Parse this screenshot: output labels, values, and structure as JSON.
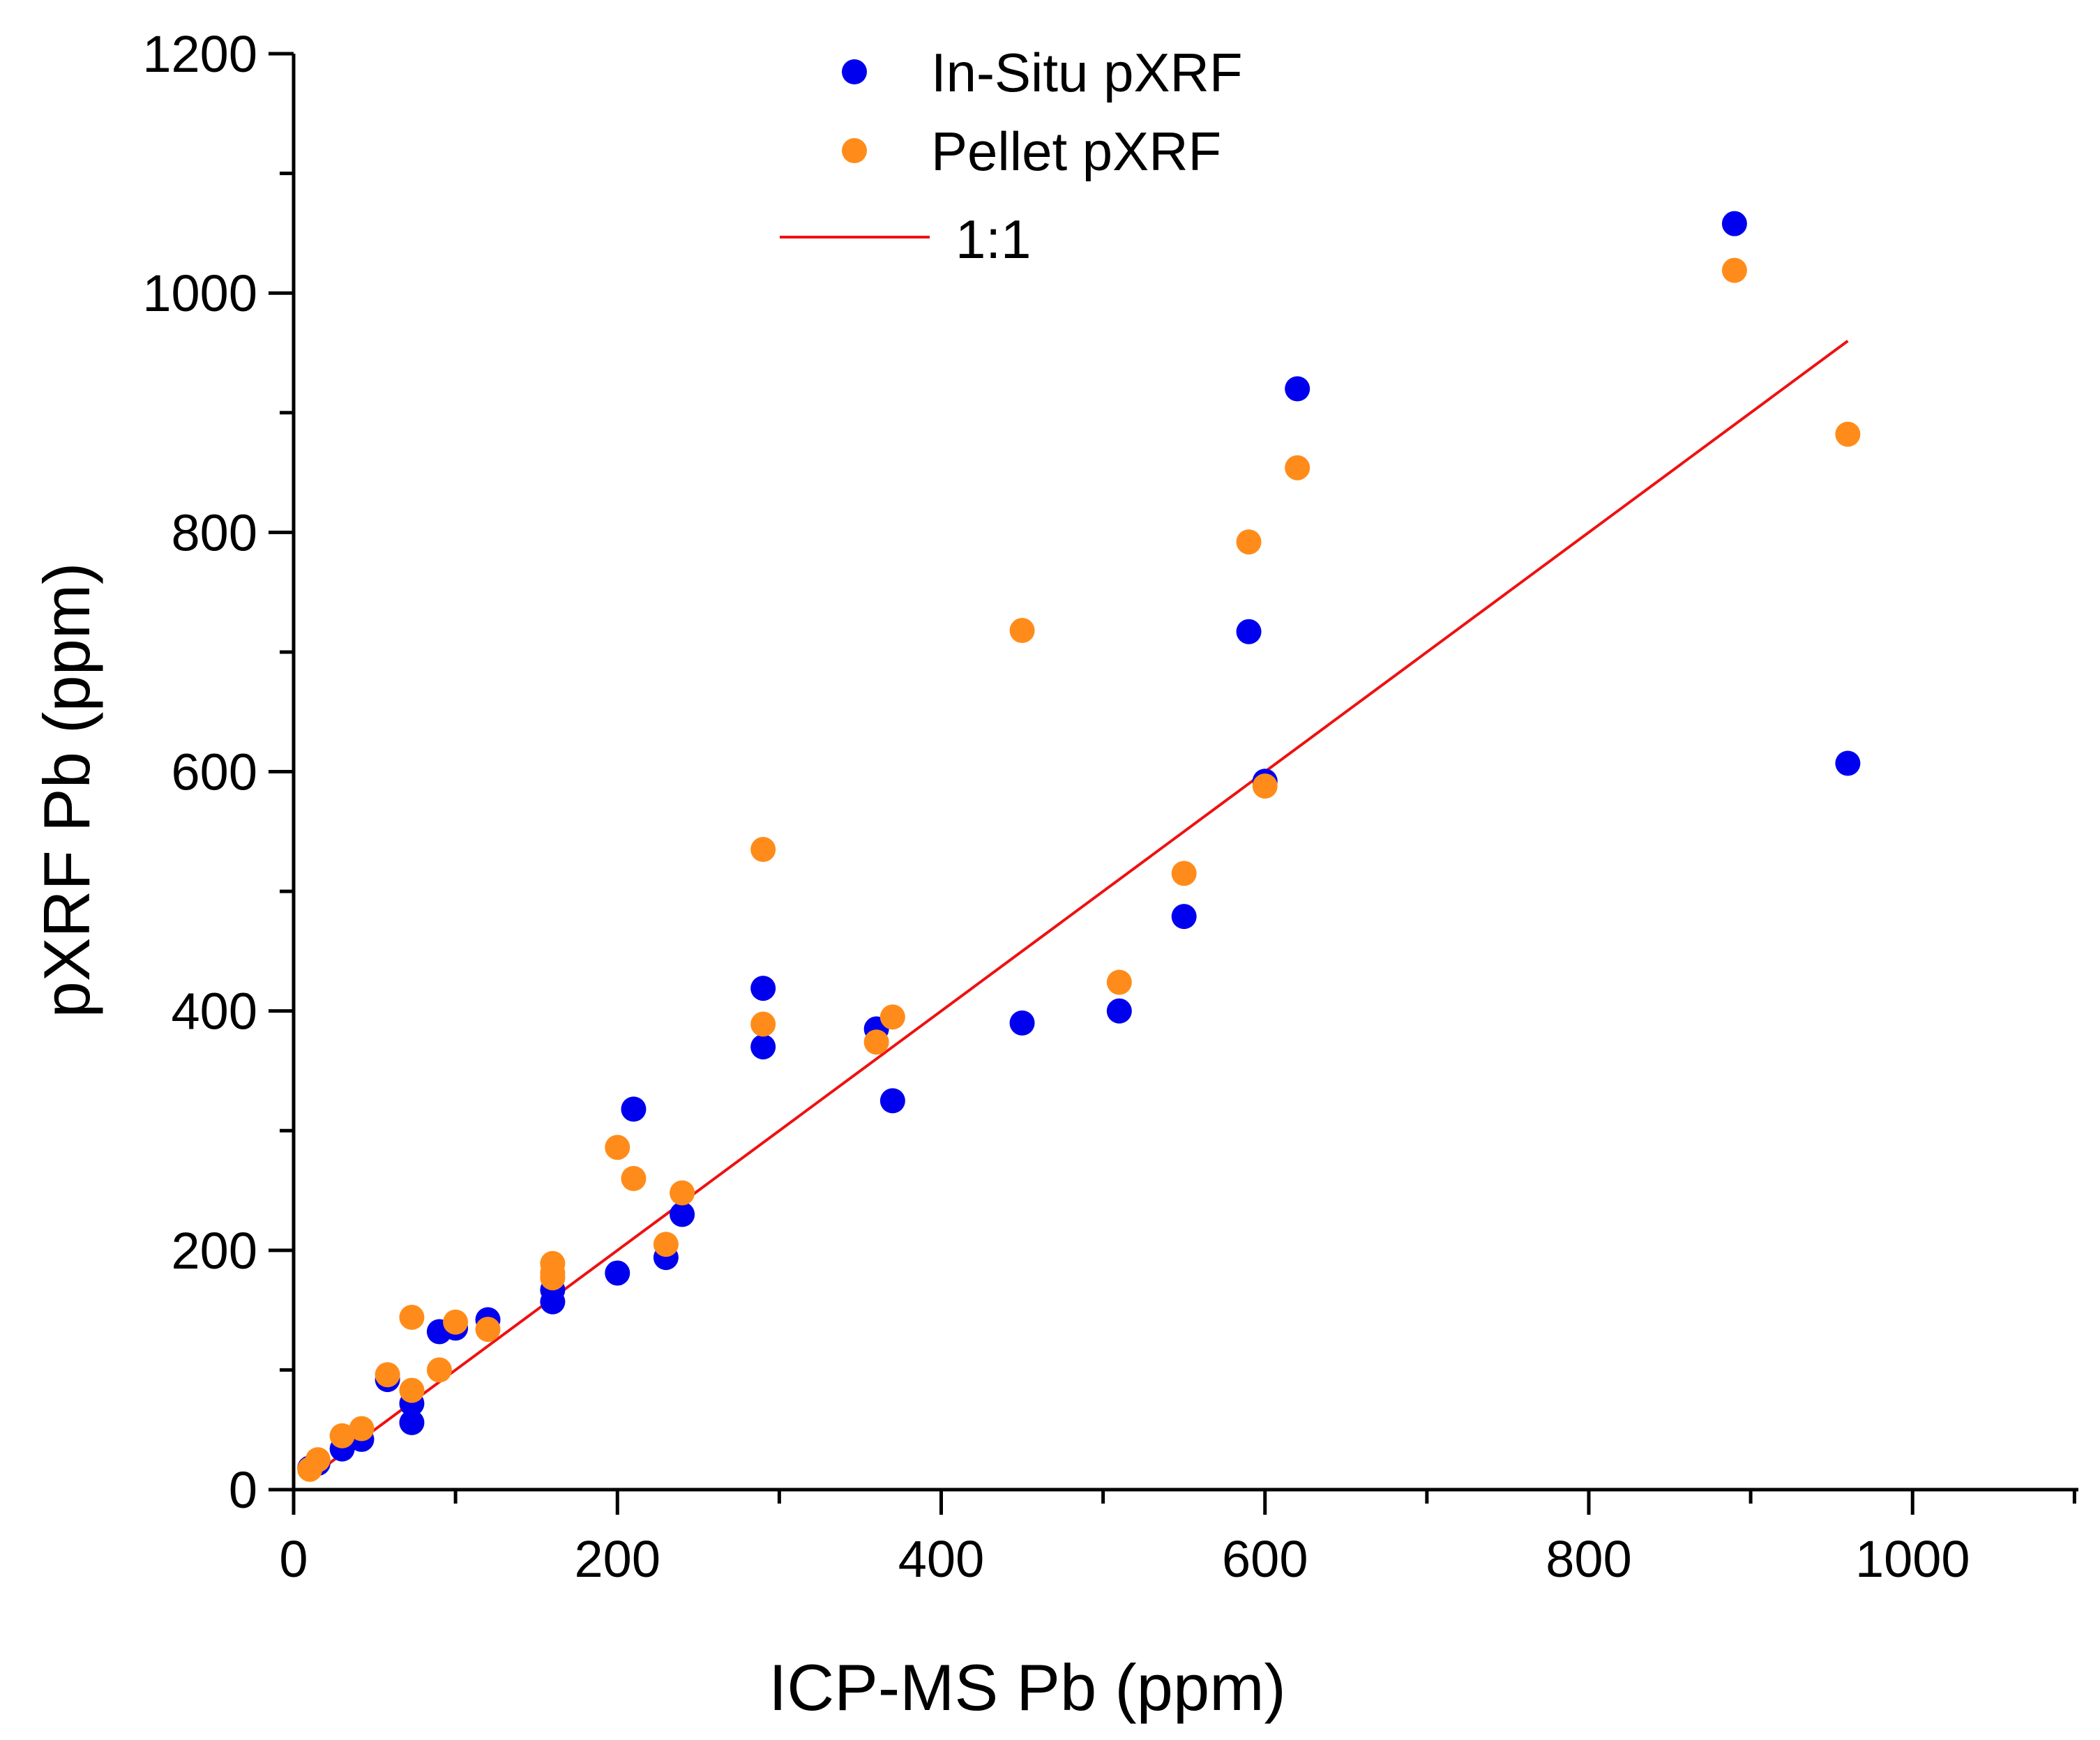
{
  "chart_data": {
    "type": "scatter",
    "title": "",
    "xlabel": "ICP-MS Pb (ppm)",
    "ylabel": "pXRF Pb (ppm)",
    "xlim": [
      0,
      1100
    ],
    "ylim": [
      0,
      1200
    ],
    "x_ticks": [
      0,
      200,
      400,
      600,
      800,
      1000
    ],
    "y_ticks": [
      0,
      200,
      400,
      600,
      800,
      1000,
      1200
    ],
    "grid": false,
    "legend_position": "top-center",
    "colors": {
      "in_situ": "#0000ee",
      "pellet": "#ff8c1a",
      "line": "#ee1111"
    },
    "series": [
      {
        "name": "In-Situ pXRF",
        "color": "#0000ee",
        "points": [
          [
            10,
            18
          ],
          [
            15,
            22
          ],
          [
            30,
            34
          ],
          [
            42,
            42
          ],
          [
            58,
            92
          ],
          [
            73,
            56
          ],
          [
            73,
            72
          ],
          [
            90,
            132
          ],
          [
            100,
            135
          ],
          [
            120,
            142
          ],
          [
            160,
            157
          ],
          [
            160,
            167
          ],
          [
            200,
            181
          ],
          [
            210,
            318
          ],
          [
            230,
            194
          ],
          [
            240,
            230
          ],
          [
            290,
            370
          ],
          [
            290,
            419
          ],
          [
            360,
            385
          ],
          [
            370,
            325
          ],
          [
            450,
            390
          ],
          [
            510,
            400
          ],
          [
            550,
            479
          ],
          [
            590,
            717
          ],
          [
            600,
            592
          ],
          [
            620,
            920
          ],
          [
            890,
            1058
          ],
          [
            960,
            607
          ]
        ]
      },
      {
        "name": "Pellet pXRF",
        "color": "#ff8c1a",
        "points": [
          [
            10,
            17
          ],
          [
            15,
            25
          ],
          [
            30,
            45
          ],
          [
            42,
            51
          ],
          [
            58,
            96
          ],
          [
            73,
            83
          ],
          [
            73,
            144
          ],
          [
            90,
            100
          ],
          [
            100,
            140
          ],
          [
            120,
            134
          ],
          [
            160,
            177
          ],
          [
            160,
            181
          ],
          [
            160,
            189
          ],
          [
            200,
            286
          ],
          [
            210,
            260
          ],
          [
            230,
            205
          ],
          [
            240,
            248
          ],
          [
            290,
            535
          ],
          [
            290,
            389
          ],
          [
            360,
            374
          ],
          [
            370,
            395
          ],
          [
            450,
            718
          ],
          [
            510,
            424
          ],
          [
            550,
            515
          ],
          [
            590,
            792
          ],
          [
            600,
            588
          ],
          [
            620,
            854
          ],
          [
            890,
            1019
          ],
          [
            960,
            882
          ]
        ]
      }
    ],
    "lines": [
      {
        "name": "1:1",
        "color": "#ee1111",
        "x": [
          10,
          960
        ],
        "y": [
          10,
          960
        ]
      }
    ]
  }
}
